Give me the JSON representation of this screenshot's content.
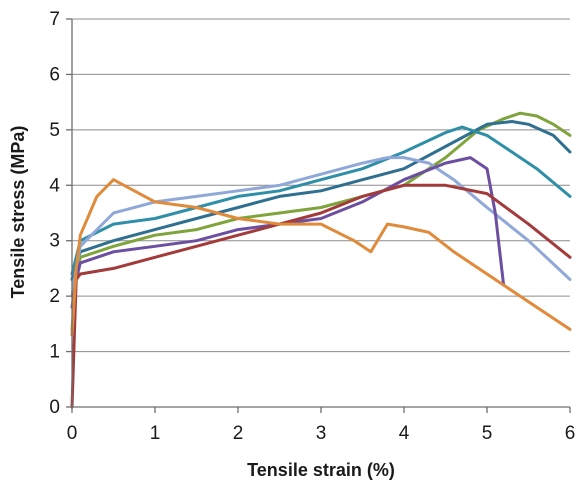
{
  "chart_data": {
    "type": "line",
    "xlabel": "Tensile strain (%)",
    "ylabel": "Tensile stress (MPa)",
    "xlim": [
      0,
      6
    ],
    "ylim": [
      0,
      7
    ],
    "x_ticks": [
      "0",
      "1",
      "2",
      "3",
      "4",
      "5",
      "6"
    ],
    "y_ticks": [
      "0",
      "1",
      "2",
      "3",
      "4",
      "5",
      "6",
      "7"
    ],
    "grid": "horizontal",
    "legend": "none",
    "series": [
      {
        "color": "#7fa43c",
        "x": [
          0,
          0.05,
          0.1,
          0.5,
          1,
          1.5,
          2,
          2.5,
          3,
          3.5,
          4,
          4.5,
          4.9,
          5.2,
          5.4,
          5.6,
          5.8,
          6.0
        ],
        "y": [
          1.4,
          2.4,
          2.7,
          2.9,
          3.1,
          3.2,
          3.4,
          3.5,
          3.6,
          3.8,
          4.0,
          4.5,
          5.0,
          5.2,
          5.3,
          5.25,
          5.1,
          4.9
        ]
      },
      {
        "color": "#2f6f8f",
        "x": [
          0,
          0.05,
          0.1,
          0.5,
          1,
          1.5,
          2,
          2.5,
          3,
          3.5,
          4,
          4.5,
          5.0,
          5.3,
          5.5,
          5.8,
          6.0
        ],
        "y": [
          2.3,
          2.6,
          2.8,
          3.0,
          3.2,
          3.4,
          3.6,
          3.8,
          3.9,
          4.1,
          4.3,
          4.7,
          5.1,
          5.15,
          5.1,
          4.9,
          4.6
        ]
      },
      {
        "color": "#2f8fa8",
        "x": [
          0,
          0.05,
          0.1,
          0.5,
          1,
          1.5,
          2,
          2.5,
          3,
          3.5,
          4,
          4.5,
          4.7,
          5.0,
          5.3,
          5.6,
          6.0
        ],
        "y": [
          2.4,
          2.7,
          3.0,
          3.3,
          3.4,
          3.6,
          3.8,
          3.9,
          4.1,
          4.3,
          4.6,
          4.95,
          5.05,
          4.9,
          4.6,
          4.3,
          3.8
        ]
      },
      {
        "color": "#8fa8d8",
        "x": [
          0,
          0.05,
          0.1,
          0.5,
          1,
          1.5,
          2,
          2.5,
          3,
          3.5,
          3.8,
          4.0,
          4.3,
          4.6,
          5.0,
          5.5,
          6.0
        ],
        "y": [
          2.0,
          2.5,
          2.9,
          3.5,
          3.7,
          3.8,
          3.9,
          4.0,
          4.2,
          4.4,
          4.5,
          4.5,
          4.4,
          4.1,
          3.6,
          3.0,
          2.3
        ]
      },
      {
        "color": "#6c4fa0",
        "x": [
          0,
          0.05,
          0.1,
          0.5,
          1,
          1.5,
          2,
          2.5,
          3,
          3.5,
          4,
          4.5,
          4.8,
          5.0,
          5.1,
          5.2
        ],
        "y": [
          1.8,
          2.3,
          2.6,
          2.8,
          2.9,
          3.0,
          3.2,
          3.3,
          3.4,
          3.7,
          4.1,
          4.4,
          4.5,
          4.3,
          3.5,
          2.2
        ]
      },
      {
        "color": "#a33b3b",
        "x": [
          0,
          0.05,
          0.1,
          0.5,
          1,
          1.5,
          2,
          2.5,
          3,
          3.5,
          4,
          4.5,
          5.0,
          5.5,
          6.0
        ],
        "y": [
          0.0,
          2.3,
          2.4,
          2.5,
          2.7,
          2.9,
          3.1,
          3.3,
          3.5,
          3.8,
          4.0,
          4.0,
          3.85,
          3.3,
          2.7
        ]
      },
      {
        "color": "#e08a3c",
        "x": [
          0,
          0.05,
          0.1,
          0.3,
          0.5,
          1,
          1.5,
          2,
          2.5,
          3,
          3.4,
          3.6,
          3.8,
          4.0,
          4.3,
          4.6,
          5.0,
          5.5,
          6.0
        ],
        "y": [
          1.3,
          2.5,
          3.1,
          3.8,
          4.1,
          3.7,
          3.6,
          3.4,
          3.3,
          3.3,
          3.0,
          2.8,
          3.3,
          3.25,
          3.15,
          2.8,
          2.4,
          1.9,
          1.4
        ]
      }
    ]
  }
}
